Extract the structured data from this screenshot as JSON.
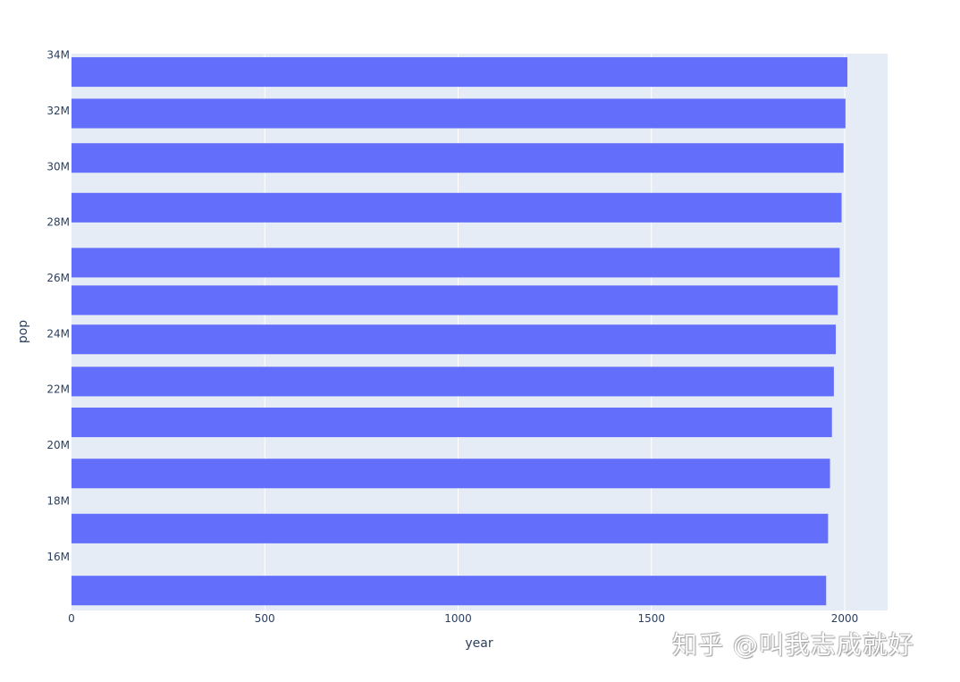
{
  "chart_data": {
    "type": "bar",
    "orientation": "h",
    "title": "",
    "xlabel": "year",
    "ylabel": "pop",
    "xlim": [
      0,
      2111
    ],
    "ylim": [
      14070000,
      34050000
    ],
    "x_ticks": [
      0,
      500,
      1000,
      1500,
      2000
    ],
    "x_tick_labels": [
      "0",
      "500",
      "1000",
      "1500",
      "2000"
    ],
    "y_ticks": [
      16000000,
      18000000,
      20000000,
      22000000,
      24000000,
      26000000,
      28000000,
      30000000,
      32000000,
      34000000
    ],
    "y_tick_labels": [
      "16M",
      "18M",
      "20M",
      "22M",
      "24M",
      "26M",
      "28M",
      "30M",
      "32M",
      "34M"
    ],
    "grid": true,
    "bar_thickness_pop": 1060000,
    "series": [
      {
        "name": "pop",
        "color": "#636efa",
        "points": [
          {
            "year": 1952,
            "pop": 14785584
          },
          {
            "year": 1957,
            "pop": 17010154
          },
          {
            "year": 1962,
            "pop": 18985849
          },
          {
            "year": 1967,
            "pop": 20819767
          },
          {
            "year": 1972,
            "pop": 22284500
          },
          {
            "year": 1977,
            "pop": 23796400
          },
          {
            "year": 1982,
            "pop": 25201900
          },
          {
            "year": 1987,
            "pop": 26549700
          },
          {
            "year": 1992,
            "pop": 28523502
          },
          {
            "year": 1997,
            "pop": 30305843
          },
          {
            "year": 2002,
            "pop": 31902268
          },
          {
            "year": 2007,
            "pop": 33390141
          }
        ]
      }
    ],
    "colors": {
      "plot_bg": "#e5ecf6",
      "paper_bg": "#ffffff",
      "grid": "#ffffff",
      "bar": "#636efa",
      "text": "#2a3f5f"
    }
  },
  "watermark": "知乎 @叫我志成就好"
}
